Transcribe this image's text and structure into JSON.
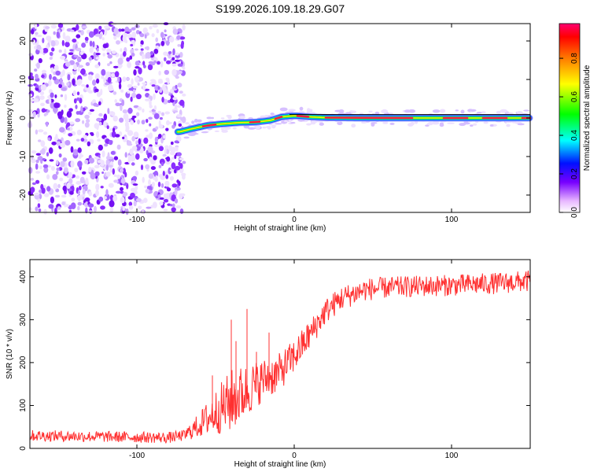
{
  "title": "S199.2026.109.18.29.G07",
  "chart_data": [
    {
      "type": "heatmap",
      "xlabel": "Height of straight line (km)",
      "ylabel": "Frequency (Hz)",
      "xlim": [
        -168,
        150
      ],
      "ylim": [
        -24.5,
        24.5
      ],
      "x_ticks": [
        -100,
        0,
        100
      ],
      "y_ticks": [
        -20,
        -10,
        0,
        10,
        20
      ],
      "ridge": [
        [
          -73,
          -3.6
        ],
        [
          -65,
          -2.8
        ],
        [
          -55,
          -1.9
        ],
        [
          -45,
          -1.5
        ],
        [
          -35,
          -1.2
        ],
        [
          -25,
          -1.1
        ],
        [
          -15,
          -0.6
        ],
        [
          -8,
          0.3
        ],
        [
          0,
          0.6
        ],
        [
          10,
          0.3
        ],
        [
          20,
          0.1
        ],
        [
          40,
          0
        ],
        [
          80,
          0
        ],
        [
          100,
          0
        ],
        [
          150,
          0
        ]
      ],
      "colorbar": {
        "label": "Normalized spectral amplitude",
        "ticks": [
          0.0,
          0.2,
          0.4,
          0.6,
          0.8
        ],
        "range": [
          0,
          0.98
        ]
      }
    },
    {
      "type": "line",
      "xlabel": "Height of straight line (km)",
      "ylabel": "SNR (10 * v/v)",
      "xlim": [
        -168,
        150
      ],
      "ylim": [
        0,
        440
      ],
      "x_ticks": [
        -100,
        0,
        100
      ],
      "y_ticks": [
        0,
        100,
        200,
        300,
        400
      ],
      "color": "#ff3030",
      "series_name": "SNR",
      "trend": [
        [
          -168,
          30
        ],
        [
          -80,
          25
        ],
        [
          -70,
          30
        ],
        [
          -60,
          55
        ],
        [
          -50,
          85
        ],
        [
          -40,
          110
        ],
        [
          -30,
          135
        ],
        [
          -20,
          160
        ],
        [
          -10,
          175
        ],
        [
          0,
          215
        ],
        [
          10,
          265
        ],
        [
          20,
          320
        ],
        [
          30,
          350
        ],
        [
          45,
          370
        ],
        [
          60,
          375
        ],
        [
          80,
          378
        ],
        [
          100,
          380
        ],
        [
          130,
          385
        ],
        [
          150,
          390
        ]
      ],
      "noise_amplitude": [
        [
          -168,
          13
        ],
        [
          -70,
          13
        ],
        [
          -60,
          30
        ],
        [
          -40,
          75
        ],
        [
          -20,
          50
        ],
        [
          0,
          40
        ],
        [
          20,
          30
        ],
        [
          60,
          25
        ],
        [
          150,
          25
        ]
      ],
      "spikes": [
        [
          -52,
          170
        ],
        [
          -40,
          300
        ],
        [
          -37,
          250
        ],
        [
          -30,
          325
        ],
        [
          -24,
          225
        ],
        [
          -16,
          270
        ]
      ]
    }
  ]
}
